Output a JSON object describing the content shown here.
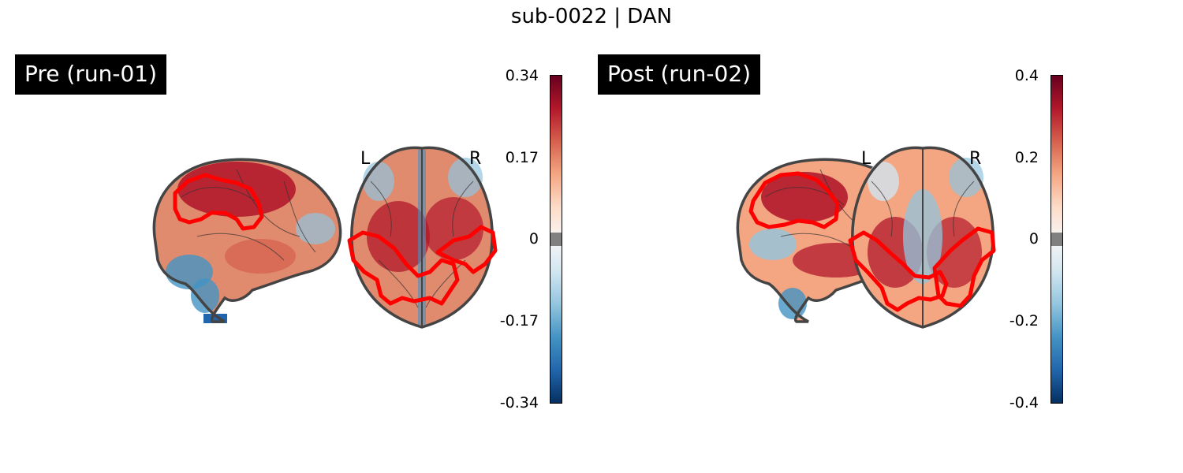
{
  "title": "sub-0022 | DAN",
  "panels": [
    {
      "label": "Pre (run-01)",
      "orientation": {
        "left": "L",
        "right": "R"
      },
      "colorbar": {
        "ticks": [
          "0.34",
          "0.17",
          "0",
          "-0.17",
          "-0.34"
        ],
        "vmin": -0.34,
        "vmax": 0.34
      }
    },
    {
      "label": "Post (run-02)",
      "orientation": {
        "left": "L",
        "right": "R"
      },
      "colorbar": {
        "ticks": [
          "0.4",
          "0.2",
          "0",
          "-0.2",
          "-0.4"
        ],
        "vmin": -0.4,
        "vmax": 0.4
      }
    }
  ],
  "colors": {
    "colormap": [
      "#053061",
      "#2166ac",
      "#4393c3",
      "#92c5de",
      "#d1e5f0",
      "#f7f7f7",
      "#fddbc7",
      "#f4a582",
      "#d6604d",
      "#b2182b",
      "#67001f"
    ],
    "outline": "#ff0000",
    "brain_edge": "#444444",
    "threshold_gray": "#808080"
  }
}
